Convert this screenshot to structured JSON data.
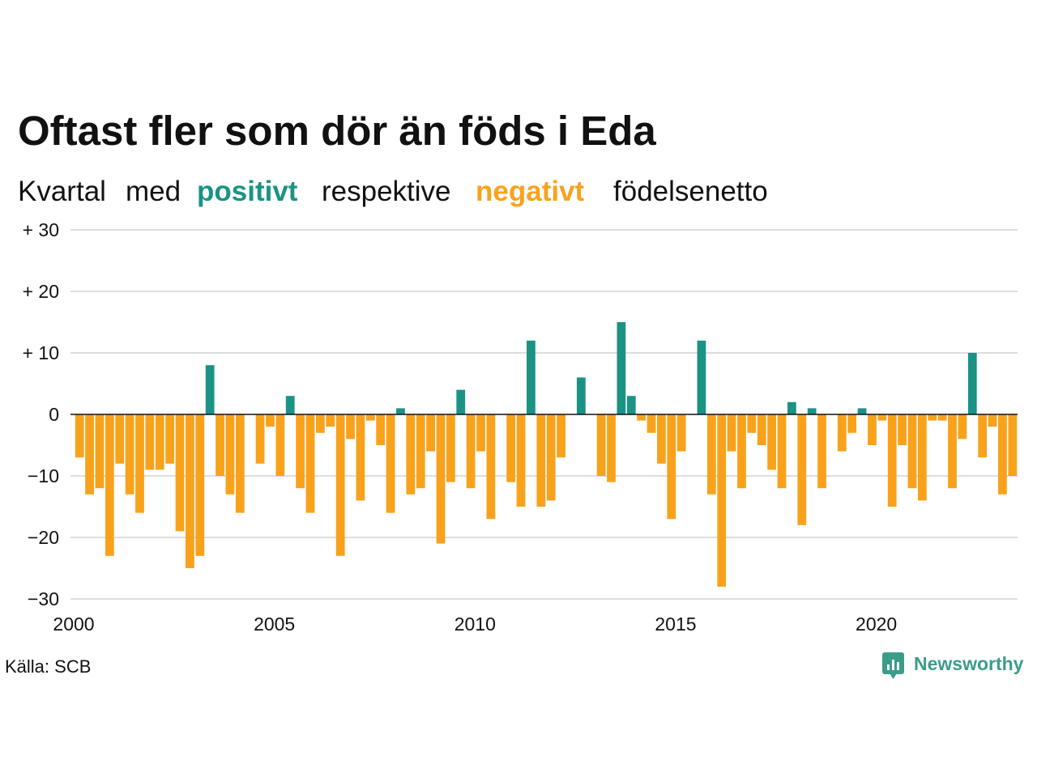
{
  "colors": {
    "positive": "#1a9385",
    "negative": "#f8a21c",
    "brand": "#3b9d89",
    "grid": "#dddddd",
    "zero_line": "#111111",
    "text": "#111111"
  },
  "source": "Källa: SCB",
  "logo": {
    "text": "Newsworthy",
    "icon": "newsworthy-chart-bubble-icon"
  },
  "chart_data": {
    "type": "bar",
    "title": "Oftast fler som dör än föds i Eda",
    "subtitle": {
      "part1": "Kvartal",
      "part2": "med",
      "positive": "positivt",
      "part3": "respektive",
      "negative": "negativt",
      "part4": "födelsenetto"
    },
    "ylim": [
      -30,
      30
    ],
    "grid": true,
    "y_ticks": [
      {
        "value": 30,
        "label": "+ 30"
      },
      {
        "value": 20,
        "label": "+ 20"
      },
      {
        "value": 10,
        "label": "+ 10"
      },
      {
        "value": 0,
        "label": "0"
      },
      {
        "value": -10,
        "label": "−10"
      },
      {
        "value": -20,
        "label": "−20"
      },
      {
        "value": -30,
        "label": "−30"
      }
    ],
    "x_ticks": [
      "2000",
      "2005",
      "2010",
      "2015",
      "2020"
    ],
    "x": [
      "2000-Q1",
      "2000-Q2",
      "2000-Q3",
      "2000-Q4",
      "2001-Q1",
      "2001-Q2",
      "2001-Q3",
      "2001-Q4",
      "2002-Q1",
      "2002-Q2",
      "2002-Q3",
      "2002-Q4",
      "2003-Q1",
      "2003-Q2",
      "2003-Q3",
      "2003-Q4",
      "2004-Q1",
      "2004-Q2",
      "2004-Q3",
      "2004-Q4",
      "2005-Q1",
      "2005-Q2",
      "2005-Q3",
      "2005-Q4",
      "2006-Q1",
      "2006-Q2",
      "2006-Q3",
      "2006-Q4",
      "2007-Q1",
      "2007-Q2",
      "2007-Q3",
      "2007-Q4",
      "2008-Q1",
      "2008-Q2",
      "2008-Q3",
      "2008-Q4",
      "2009-Q1",
      "2009-Q2",
      "2009-Q3",
      "2009-Q4",
      "2010-Q1",
      "2010-Q2",
      "2010-Q3",
      "2010-Q4",
      "2011-Q1",
      "2011-Q2",
      "2011-Q3",
      "2011-Q4",
      "2012-Q1",
      "2012-Q2",
      "2012-Q3",
      "2012-Q4",
      "2013-Q1",
      "2013-Q2",
      "2013-Q3",
      "2013-Q4",
      "2014-Q1",
      "2014-Q2",
      "2014-Q3",
      "2014-Q4",
      "2015-Q1",
      "2015-Q2",
      "2015-Q3",
      "2015-Q4",
      "2016-Q1",
      "2016-Q2",
      "2016-Q3",
      "2016-Q4",
      "2017-Q1",
      "2017-Q2",
      "2017-Q3",
      "2017-Q4",
      "2018-Q1",
      "2018-Q2",
      "2018-Q3",
      "2018-Q4",
      "2019-Q1",
      "2019-Q2",
      "2019-Q3",
      "2019-Q4",
      "2020-Q1",
      "2020-Q2",
      "2020-Q3",
      "2020-Q4",
      "2021-Q1",
      "2021-Q2",
      "2021-Q3",
      "2021-Q4",
      "2022-Q1",
      "2022-Q2",
      "2022-Q3",
      "2022-Q4",
      "2023-Q1",
      "2023-Q2"
    ],
    "values": [
      -7,
      -13,
      -12,
      -23,
      -8,
      -13,
      -16,
      -9,
      -9,
      -8,
      -19,
      -25,
      -23,
      8,
      -10,
      -13,
      -16,
      0,
      -8,
      -2,
      -10,
      3,
      -12,
      -16,
      -3,
      -2,
      -23,
      -4,
      -14,
      -1,
      -5,
      -16,
      1,
      -13,
      -12,
      -6,
      -21,
      -11,
      4,
      -12,
      -6,
      -17,
      0,
      -11,
      -15,
      12,
      -15,
      -14,
      -7,
      0,
      6,
      0,
      -10,
      -11,
      15,
      3,
      -1,
      -3,
      -8,
      -17,
      -6,
      0,
      12,
      -13,
      -28,
      -6,
      -12,
      -3,
      -5,
      -9,
      -12,
      2,
      -18,
      1,
      -12,
      0,
      -6,
      -3,
      1,
      -5,
      -1,
      -15,
      -5,
      -12,
      -14,
      -1,
      -1,
      -12,
      -4,
      10,
      -7,
      -2,
      -13,
      -10
    ]
  }
}
